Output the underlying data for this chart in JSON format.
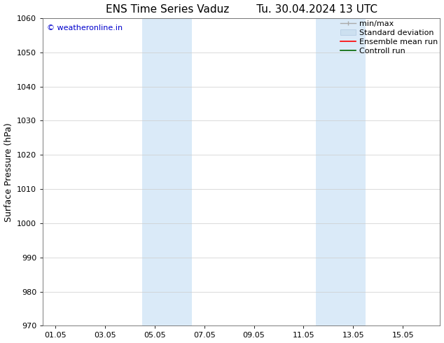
{
  "title_left": "ENS Time Series Vaduz",
  "title_right": "Tu. 30.04.2024 13 UTC",
  "ylabel": "Surface Pressure (hPa)",
  "ylim": [
    970,
    1060
  ],
  "yticks": [
    970,
    980,
    990,
    1000,
    1010,
    1020,
    1030,
    1040,
    1050,
    1060
  ],
  "xtick_labels": [
    "01.05",
    "03.05",
    "05.05",
    "07.05",
    "09.05",
    "11.05",
    "13.05",
    "15.05"
  ],
  "xtick_positions": [
    0,
    2,
    4,
    6,
    8,
    10,
    12,
    14
  ],
  "shaded_bands": [
    {
      "x_start": 3.5,
      "x_end": 5.5
    },
    {
      "x_start": 10.5,
      "x_end": 12.5
    }
  ],
  "shaded_color": "#daeaf8",
  "background_color": "#ffffff",
  "watermark_text": "© weatheronline.in",
  "watermark_color": "#0000cc",
  "grid_color": "#cccccc",
  "xlim": [
    -0.5,
    15.5
  ],
  "title_fontsize": 11,
  "tick_fontsize": 8,
  "ylabel_fontsize": 9,
  "legend_fontsize": 8,
  "minmax_color": "#aaaaaa",
  "std_facecolor": "#cce0f0",
  "std_edgecolor": "#b0c8e0",
  "ensemble_color": "#ff0000",
  "control_color": "#006600"
}
